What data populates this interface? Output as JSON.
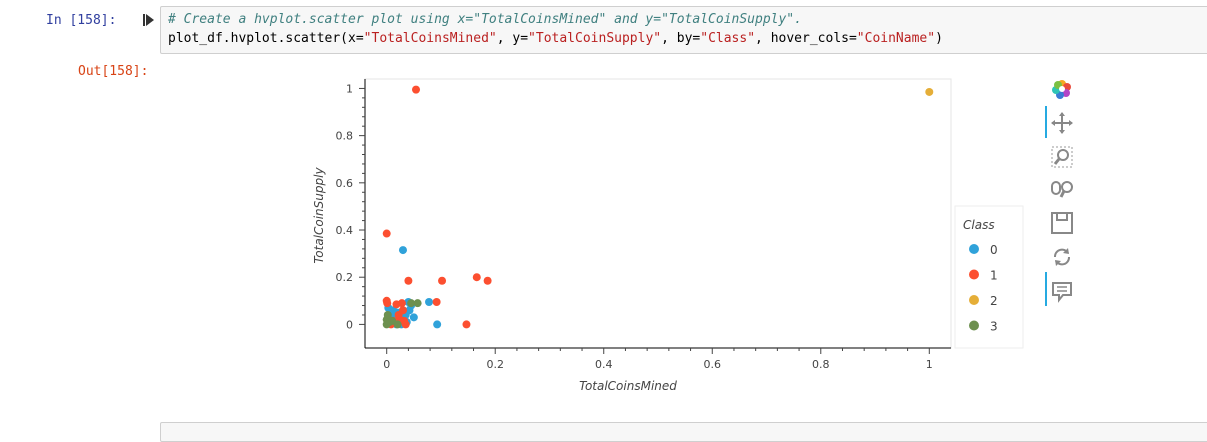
{
  "cell": {
    "in_prompt": "In [158]:",
    "out_prompt": "Out[158]:",
    "code_comment": "# Create a hvplot.scatter plot using x=\"TotalCoinsMined\" and y=\"TotalCoinSupply\".",
    "code_call_prefix": "plot_df.hvplot.scatter(",
    "kw_x": "x=",
    "str_x": "\"TotalCoinsMined\"",
    "kw_y": ", y=",
    "str_y": "\"TotalCoinSupply\"",
    "kw_by": ", by=",
    "str_by": "\"Class\"",
    "kw_hover": ", hover_cols=",
    "str_hover": "\"CoinName\"",
    "code_call_suffix": ")"
  },
  "toolbar": {
    "tools": [
      "bokeh-logo-icon",
      "pan-icon",
      "box-zoom-icon",
      "wheel-zoom-icon",
      "save-icon",
      "reset-icon",
      "hover-icon"
    ]
  },
  "chart_data": {
    "type": "scatter",
    "title": "",
    "xlabel": "TotalCoinsMined",
    "ylabel": "TotalCoinSupply",
    "xlim": [
      -0.04,
      1.04
    ],
    "ylim": [
      -0.1,
      1.04
    ],
    "xticks": [
      0,
      0.2,
      0.4,
      0.6,
      0.8,
      1
    ],
    "xtick_labels": [
      "0",
      "0.2",
      "0.4",
      "0.6",
      "0.8",
      "1"
    ],
    "yticks": [
      0,
      0.2,
      0.4,
      0.6,
      0.8,
      1
    ],
    "ytick_labels": [
      "0",
      "0.2",
      "0.4",
      "0.6",
      "0.8",
      "1"
    ],
    "legend_title": "Class",
    "legend_position": "right",
    "grid": false,
    "series": [
      {
        "name": "0",
        "color": "#30a2da",
        "points": [
          [
            0.001,
            0.02
          ],
          [
            0.003,
            0.07
          ],
          [
            0.005,
            0.01
          ],
          [
            0.008,
            0.04
          ],
          [
            0.01,
            0.005
          ],
          [
            0.012,
            0.06
          ],
          [
            0.015,
            0.02
          ],
          [
            0.018,
            0.0
          ],
          [
            0.02,
            0.05
          ],
          [
            0.022,
            0.01
          ],
          [
            0.025,
            0.03
          ],
          [
            0.027,
            0.0
          ],
          [
            0.03,
            0.06
          ],
          [
            0.03,
            0.315
          ],
          [
            0.032,
            0.02
          ],
          [
            0.035,
            0.04
          ],
          [
            0.037,
            0.01
          ],
          [
            0.04,
            0.095
          ],
          [
            0.042,
            0.06
          ],
          [
            0.045,
            0.08
          ],
          [
            0.05,
            0.03
          ],
          [
            0.078,
            0.095
          ],
          [
            0.093,
            0.0
          ]
        ]
      },
      {
        "name": "1",
        "color": "#fc4f30",
        "points": [
          [
            0.054,
            0.995
          ],
          [
            0.0,
            0.385
          ],
          [
            0.0,
            0.1
          ],
          [
            0.001,
            0.09
          ],
          [
            0.004,
            0.02
          ],
          [
            0.008,
            0.0
          ],
          [
            0.012,
            0.015
          ],
          [
            0.018,
            0.085
          ],
          [
            0.022,
            0.04
          ],
          [
            0.024,
            0.02
          ],
          [
            0.028,
            0.09
          ],
          [
            0.03,
            0.06
          ],
          [
            0.032,
            0.015
          ],
          [
            0.035,
            0.0
          ],
          [
            0.04,
            0.185
          ],
          [
            0.092,
            0.095
          ],
          [
            0.102,
            0.185
          ],
          [
            0.147,
            0.0
          ],
          [
            0.166,
            0.2
          ],
          [
            0.186,
            0.185
          ]
        ]
      },
      {
        "name": "2",
        "color": "#e5ae38",
        "points": [
          [
            1.0,
            0.985
          ]
        ]
      },
      {
        "name": "3",
        "color": "#6d904f",
        "points": [
          [
            0.0,
            0.0
          ],
          [
            0.0,
            0.02
          ],
          [
            0.002,
            0.04
          ],
          [
            0.005,
            0.01
          ],
          [
            0.01,
            0.015
          ],
          [
            0.02,
            0.0
          ],
          [
            0.045,
            0.09
          ],
          [
            0.057,
            0.09
          ]
        ]
      }
    ]
  }
}
